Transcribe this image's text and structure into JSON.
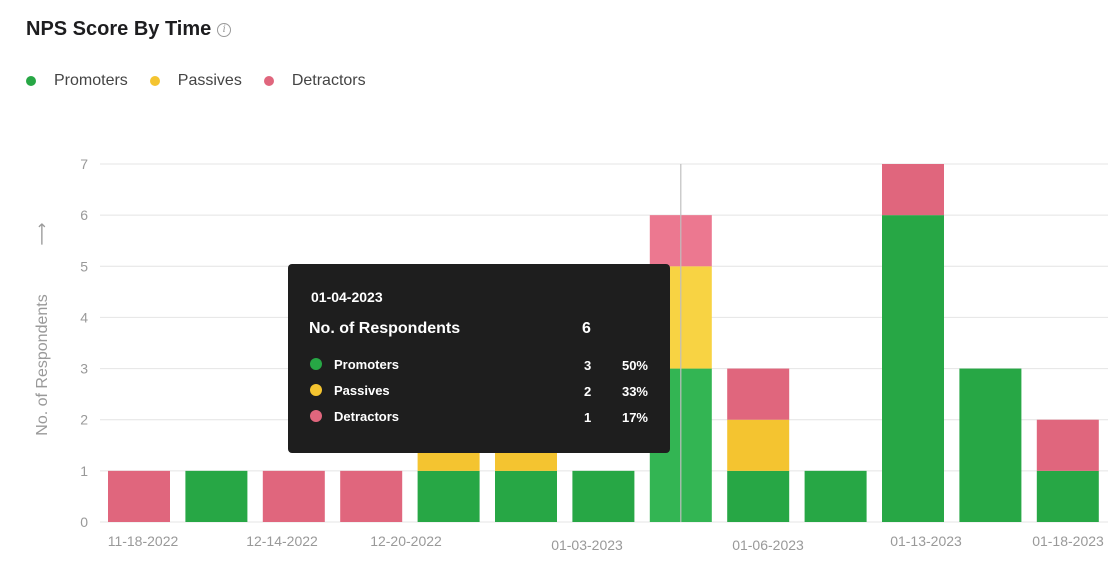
{
  "header": {
    "title": "NPS Score By Time",
    "info_icon": "info-circle-icon"
  },
  "colors": {
    "promoters": "#27a745",
    "passives": "#f4c430",
    "detractors": "#e0667d",
    "grid": "#e4e4e4",
    "axis_text": "#999999",
    "highlight_promoters": "#33b553",
    "highlight_passives": "#f8d343",
    "highlight_detractors": "#ec7890"
  },
  "chart_data": {
    "type": "bar",
    "stacked": true,
    "ylabel": "No. of Respondents",
    "ylabel_arrow": "⟶",
    "ylim": [
      0,
      7
    ],
    "yticks": [
      0,
      1,
      2,
      3,
      4,
      5,
      6,
      7
    ],
    "grid": true,
    "legend_position": "top-left",
    "categories": [
      "11-18-2022",
      "",
      "12-14-2022",
      "12-20-2022",
      "",
      "",
      "01-03-2023",
      "01-04-2023",
      "01-06-2023",
      "",
      "01-13-2023",
      "",
      "01-18-2023"
    ],
    "xtick_labels": [
      "11-18-2022",
      "12-14-2022",
      "12-20-2022",
      "01-03-2023",
      "01-06-2023",
      "01-13-2023",
      "01-18-2023"
    ],
    "series": [
      {
        "name": "Promoters",
        "values": [
          0,
          1,
          0,
          0,
          1,
          1,
          1,
          3,
          1,
          1,
          6,
          3,
          1
        ]
      },
      {
        "name": "Passives",
        "values": [
          0,
          0,
          0,
          0,
          1,
          1,
          0,
          2,
          1,
          0,
          0,
          0,
          0
        ]
      },
      {
        "name": "Detractors",
        "values": [
          1,
          0,
          1,
          1,
          0,
          0,
          0,
          1,
          1,
          0,
          1,
          0,
          1
        ]
      }
    ],
    "highlighted_index": 7
  },
  "tooltip": {
    "date": "01-04-2023",
    "heading": "No. of Respondents",
    "total": "6",
    "rows": [
      {
        "label": "Promoters",
        "count": "3",
        "pct": "50%"
      },
      {
        "label": "Passives",
        "count": "2",
        "pct": "33%"
      },
      {
        "label": "Detractors",
        "count": "1",
        "pct": "17%"
      }
    ]
  }
}
